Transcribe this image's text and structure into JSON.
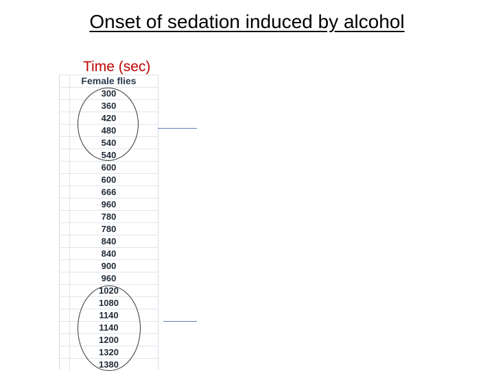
{
  "title": "Onset of sedation induced by alcohol",
  "subtitle": "Time (sec)",
  "table": {
    "header": "Female flies",
    "values": [
      "300",
      "360",
      "420",
      "480",
      "540",
      "540",
      "600",
      "600",
      "666",
      "960",
      "780",
      "780",
      "840",
      "840",
      "900",
      "960",
      "1020",
      "1080",
      "1140",
      "1140",
      "1200",
      "1320",
      "1380"
    ]
  },
  "colors": {
    "subtitle": "#c00000",
    "title": "#000000",
    "annotation_line": "#5b7fb5"
  }
}
